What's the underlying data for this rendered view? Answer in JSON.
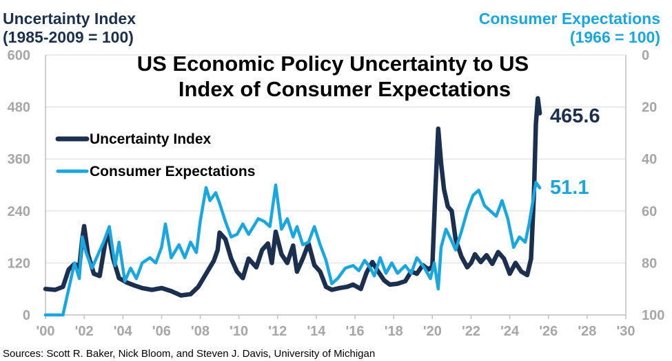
{
  "chart_data": {
    "type": "line",
    "title": [
      "US Economic Policy Uncertainty to US",
      "Index of Consumer Expectations"
    ],
    "left_axis_title": [
      "Uncertainty Index",
      "(1985-2009 = 100)"
    ],
    "right_axis_title": [
      "Consumer Expectations",
      "(1966 = 100)"
    ],
    "x_tick_labels": [
      "'00",
      "'02",
      "'04",
      "'06",
      "'08",
      "'10",
      "'12",
      "'14",
      "'16",
      "'18",
      "'20",
      "'22",
      "'24",
      "'26",
      "'28",
      "'30"
    ],
    "x_tick_years": [
      2000,
      2002,
      2004,
      2006,
      2008,
      2010,
      2012,
      2014,
      2016,
      2018,
      2020,
      2022,
      2024,
      2026,
      2028,
      2030
    ],
    "xlim": [
      2000,
      2030
    ],
    "left_ylim": [
      0,
      600
    ],
    "left_ticks": [
      "0",
      "120",
      "240",
      "360",
      "480",
      "600"
    ],
    "left_tick_values": [
      0,
      120,
      240,
      360,
      480,
      600
    ],
    "right_ylim": [
      0,
      100
    ],
    "right_axis_inverted": true,
    "right_ticks": [
      "0",
      "20",
      "40",
      "60",
      "80",
      "100"
    ],
    "right_tick_values": [
      0,
      20,
      40,
      60,
      80,
      100
    ],
    "legend_position": "top-left",
    "grid": "horizontal",
    "series": [
      {
        "name": "Uncertainty Index",
        "axis": "left",
        "color": "#1b2f4f",
        "end_label": "465.6",
        "points": [
          [
            2000.0,
            60
          ],
          [
            2000.5,
            58
          ],
          [
            2000.9,
            65
          ],
          [
            2001.2,
            105
          ],
          [
            2001.5,
            118
          ],
          [
            2001.75,
            110
          ],
          [
            2001.9,
            175
          ],
          [
            2002.0,
            205
          ],
          [
            2002.2,
            140
          ],
          [
            2002.5,
            95
          ],
          [
            2002.8,
            90
          ],
          [
            2003.1,
            170
          ],
          [
            2003.25,
            190
          ],
          [
            2003.5,
            130
          ],
          [
            2003.8,
            85
          ],
          [
            2004.2,
            75
          ],
          [
            2004.6,
            68
          ],
          [
            2005.0,
            62
          ],
          [
            2005.5,
            58
          ],
          [
            2006.0,
            62
          ],
          [
            2006.5,
            55
          ],
          [
            2007.0,
            45
          ],
          [
            2007.5,
            48
          ],
          [
            2007.9,
            65
          ],
          [
            2008.3,
            95
          ],
          [
            2008.7,
            125
          ],
          [
            2008.9,
            150
          ],
          [
            2009.0,
            190
          ],
          [
            2009.3,
            175
          ],
          [
            2009.6,
            130
          ],
          [
            2009.9,
            100
          ],
          [
            2010.2,
            85
          ],
          [
            2010.5,
            130
          ],
          [
            2010.9,
            110
          ],
          [
            2011.2,
            150
          ],
          [
            2011.5,
            165
          ],
          [
            2011.7,
            120
          ],
          [
            2011.9,
            192
          ],
          [
            2012.2,
            140
          ],
          [
            2012.5,
            120
          ],
          [
            2012.8,
            160
          ],
          [
            2013.0,
            100
          ],
          [
            2013.3,
            130
          ],
          [
            2013.6,
            165
          ],
          [
            2013.9,
            115
          ],
          [
            2014.2,
            100
          ],
          [
            2014.5,
            65
          ],
          [
            2014.8,
            58
          ],
          [
            2015.2,
            62
          ],
          [
            2015.6,
            65
          ],
          [
            2015.9,
            70
          ],
          [
            2016.3,
            60
          ],
          [
            2016.6,
            98
          ],
          [
            2016.9,
            122
          ],
          [
            2017.2,
            100
          ],
          [
            2017.5,
            80
          ],
          [
            2017.8,
            70
          ],
          [
            2018.2,
            72
          ],
          [
            2018.6,
            78
          ],
          [
            2018.9,
            100
          ],
          [
            2019.2,
            95
          ],
          [
            2019.5,
            115
          ],
          [
            2019.8,
            105
          ],
          [
            2020.0,
            112
          ],
          [
            2020.15,
            280
          ],
          [
            2020.3,
            430
          ],
          [
            2020.45,
            350
          ],
          [
            2020.6,
            290
          ],
          [
            2020.8,
            250
          ],
          [
            2021.0,
            240
          ],
          [
            2021.2,
            175
          ],
          [
            2021.5,
            135
          ],
          [
            2021.8,
            110
          ],
          [
            2022.0,
            120
          ],
          [
            2022.2,
            140
          ],
          [
            2022.5,
            122
          ],
          [
            2022.8,
            138
          ],
          [
            2023.1,
            118
          ],
          [
            2023.4,
            145
          ],
          [
            2023.7,
            130
          ],
          [
            2024.0,
            95
          ],
          [
            2024.3,
            120
          ],
          [
            2024.6,
            100
          ],
          [
            2024.9,
            92
          ],
          [
            2025.1,
            130
          ],
          [
            2025.25,
            280
          ],
          [
            2025.35,
            440
          ],
          [
            2025.45,
            500
          ],
          [
            2025.55,
            465.6
          ]
        ]
      },
      {
        "name": "Consumer Expectations",
        "axis": "right",
        "color": "#1aa7e0",
        "end_label": "51.1",
        "points": [
          [
            2000.0,
            100
          ],
          [
            2000.6,
            100
          ],
          [
            2000.9,
            100
          ],
          [
            2001.2,
            90
          ],
          [
            2001.5,
            80
          ],
          [
            2001.75,
            86
          ],
          [
            2001.9,
            70
          ],
          [
            2002.1,
            76
          ],
          [
            2002.4,
            82
          ],
          [
            2002.7,
            77
          ],
          [
            2003.0,
            72
          ],
          [
            2003.3,
            66
          ],
          [
            2003.6,
            81
          ],
          [
            2003.8,
            72
          ],
          [
            2004.1,
            87
          ],
          [
            2004.4,
            82
          ],
          [
            2004.7,
            86
          ],
          [
            2005.0,
            80
          ],
          [
            2005.4,
            78
          ],
          [
            2005.7,
            80
          ],
          [
            2006.0,
            74
          ],
          [
            2006.2,
            65
          ],
          [
            2006.5,
            78
          ],
          [
            2006.9,
            73
          ],
          [
            2007.2,
            78
          ],
          [
            2007.5,
            72
          ],
          [
            2007.8,
            76
          ],
          [
            2008.0,
            64
          ],
          [
            2008.3,
            51
          ],
          [
            2008.5,
            56
          ],
          [
            2008.8,
            53
          ],
          [
            2009.0,
            57
          ],
          [
            2009.3,
            64
          ],
          [
            2009.6,
            70
          ],
          [
            2009.9,
            69
          ],
          [
            2010.2,
            65
          ],
          [
            2010.5,
            69
          ],
          [
            2011.0,
            63
          ],
          [
            2011.3,
            64
          ],
          [
            2011.6,
            66
          ],
          [
            2011.9,
            50
          ],
          [
            2012.2,
            67
          ],
          [
            2012.5,
            63
          ],
          [
            2012.8,
            70
          ],
          [
            2013.0,
            66
          ],
          [
            2013.3,
            73
          ],
          [
            2013.6,
            72
          ],
          [
            2013.9,
            66
          ],
          [
            2014.2,
            73
          ],
          [
            2014.5,
            79
          ],
          [
            2014.8,
            88
          ],
          [
            2015.1,
            86
          ],
          [
            2015.5,
            82
          ],
          [
            2015.9,
            81
          ],
          [
            2016.2,
            83
          ],
          [
            2016.5,
            79
          ],
          [
            2016.8,
            82
          ],
          [
            2017.0,
            85
          ],
          [
            2017.3,
            78
          ],
          [
            2017.6,
            84
          ],
          [
            2017.9,
            80
          ],
          [
            2018.2,
            84
          ],
          [
            2018.6,
            81
          ],
          [
            2018.9,
            84
          ],
          [
            2019.2,
            78
          ],
          [
            2019.6,
            82
          ],
          [
            2019.9,
            86
          ],
          [
            2020.1,
            80
          ],
          [
            2020.3,
            90
          ],
          [
            2020.45,
            74
          ],
          [
            2020.7,
            67
          ],
          [
            2020.9,
            70
          ],
          [
            2021.2,
            75
          ],
          [
            2021.5,
            68
          ],
          [
            2021.8,
            60
          ],
          [
            2022.1,
            54
          ],
          [
            2022.4,
            52
          ],
          [
            2022.7,
            58
          ],
          [
            2023.0,
            60
          ],
          [
            2023.3,
            62
          ],
          [
            2023.6,
            56
          ],
          [
            2023.9,
            63
          ],
          [
            2024.2,
            74
          ],
          [
            2024.5,
            70
          ],
          [
            2024.8,
            72
          ],
          [
            2025.0,
            65
          ],
          [
            2025.2,
            56
          ],
          [
            2025.35,
            49
          ],
          [
            2025.55,
            51.1
          ]
        ]
      }
    ],
    "source": "Sources: Scott R. Baker, Nick Bloom, and Steven J. Davis, University of Michigan"
  }
}
